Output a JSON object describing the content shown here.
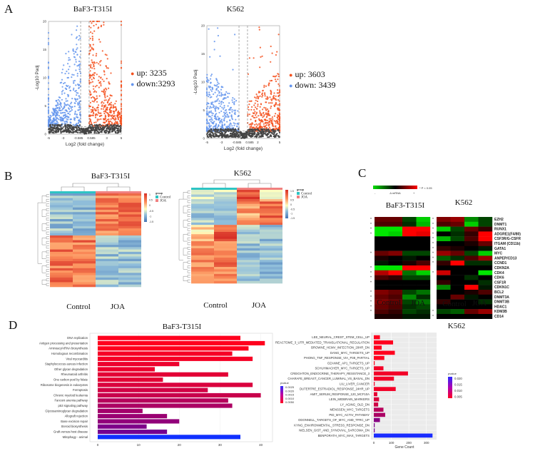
{
  "panels": {
    "A": {
      "letter": "A"
    },
    "B": {
      "letter": "B"
    },
    "C": {
      "letter": "C"
    },
    "D": {
      "letter": "D"
    }
  },
  "chart_data": [
    {
      "id": "A1",
      "type": "scatter",
      "subtype": "volcano",
      "title": "BaF3-T315I",
      "xlabel": "Log2 (fold change)",
      "ylabel": "-Log10 Padj",
      "xticks": [
        "-5",
        "-3",
        "-0.585",
        "0.585",
        "3",
        "5"
      ],
      "yticks": [
        "0",
        "5",
        "10",
        "15",
        "20"
      ],
      "xlim": [
        -5,
        5
      ],
      "ylim": [
        0,
        20
      ],
      "thresholds": {
        "log2fc": 0.585,
        "neg_log10_padj": 1.3
      },
      "legend": [
        {
          "label": "up:",
          "value": "3235",
          "color": "#f4511e"
        },
        {
          "label": "down:",
          "value": "3293",
          "color": "#6495ed"
        }
      ],
      "colors": {
        "up": "#f4511e",
        "down": "#6495ed",
        "ns": "#444444"
      }
    },
    {
      "id": "A2",
      "type": "scatter",
      "subtype": "volcano",
      "title": "K562",
      "xlabel": "Log2 (fold change)",
      "ylabel": "-Log10 Padj",
      "xticks": [
        "-5",
        "-3",
        "-0.585",
        "0.585",
        "2",
        "5"
      ],
      "yticks": [
        "0",
        "5",
        "10",
        "15",
        "20"
      ],
      "xlim": [
        -5,
        5
      ],
      "ylim": [
        0,
        20
      ],
      "thresholds": {
        "log2fc": 0.585,
        "neg_log10_padj": 1.3
      },
      "legend": [
        {
          "label": "up:",
          "value": "3603",
          "color": "#f4511e"
        },
        {
          "label": "down:",
          "value": "3439",
          "color": "#6495ed"
        }
      ],
      "colors": {
        "up": "#f4511e",
        "down": "#6495ed",
        "ns": "#444444"
      }
    },
    {
      "id": "B1",
      "type": "heatmap",
      "title": "BaF3-T315I",
      "xlabels": [
        "Control",
        "JOA"
      ],
      "legend_title": "group",
      "groups": [
        {
          "name": "Control",
          "color": "#2ec4c4"
        },
        {
          "name": "JOA",
          "color": "#f08080"
        }
      ],
      "scale_ticks": [
        "1",
        "0.5",
        "0",
        "-0.5",
        "-1",
        "-1.5"
      ],
      "rows": 40,
      "columns": 4
    },
    {
      "id": "B2",
      "type": "heatmap",
      "title": "K562",
      "xlabels": [
        "Control",
        "JOA"
      ],
      "legend_title": "group",
      "groups": [
        {
          "name": "Control",
          "color": "#2ec4c4"
        },
        {
          "name": "JOA",
          "color": "#f08080"
        }
      ],
      "scale_ticks": [
        "1.5",
        "1",
        "0.5",
        "0",
        "-0.5",
        "-1",
        "-1.5"
      ],
      "rows": 40,
      "columns": 4
    },
    {
      "id": "C",
      "type": "heatmap",
      "legend_label": "Δ mRNA",
      "legend_minus": "-",
      "legend_plus": "+",
      "pvalue_note": "* P < 0.05",
      "panels": [
        {
          "title": "BaF3-T315I",
          "xlabels": [
            "Control",
            "JOA"
          ],
          "values": [
            [
              0.4,
              0.4,
              -0.3,
              -0.9
            ],
            [
              0.3,
              0.3,
              -0.2,
              -0.8
            ],
            [
              -1,
              -1,
              1,
              1
            ],
            [
              -1,
              -0.9,
              1,
              0.9
            ],
            [
              0,
              0,
              0,
              0
            ],
            [
              0,
              0,
              0,
              0
            ],
            [
              0,
              0,
              0,
              0
            ],
            [
              0.4,
              0.5,
              -0.3,
              -0.3
            ],
            [
              0.1,
              0,
              -0.1,
              0
            ],
            [
              -0.1,
              0,
              0.1,
              0.3
            ],
            [
              -1,
              -1,
              1,
              1
            ],
            [
              0.7,
              1,
              -0.5,
              -0.9
            ],
            [
              0.3,
              0.2,
              -0.3,
              -0.3
            ],
            [
              0,
              0,
              0,
              0
            ],
            [
              0,
              0,
              0,
              0
            ],
            [
              0.5,
              0.4,
              -0.3,
              -0.5
            ],
            [
              0.4,
              0.3,
              -0.6,
              -0.2
            ],
            [
              0.5,
              0.4,
              -0.3,
              -0.5
            ],
            [
              0.4,
              0.3,
              -0.2,
              -0.3
            ],
            [
              0.3,
              0.2,
              -0.3,
              -0.2
            ],
            [
              0.1,
              0.1,
              -0.1,
              -0.1
            ]
          ],
          "significant": [
            true,
            true,
            true,
            true,
            false,
            false,
            false,
            true,
            false,
            false,
            true,
            true,
            true,
            true,
            false,
            true,
            true,
            true,
            true,
            true,
            false
          ]
        },
        {
          "title": "K562",
          "xlabels": [
            "Control",
            "JOA"
          ],
          "values": [
            [
              0.5,
              0.6,
              -0.6,
              -0.3
            ],
            [
              0.3,
              0.4,
              -0.9,
              -0.3
            ],
            [
              -0.9,
              -0.3,
              0.4,
              0.2
            ],
            [
              0,
              -0.2,
              0.2,
              1
            ],
            [
              -0.8,
              -0.3,
              0.3,
              1
            ],
            [
              0,
              0,
              0.1,
              0.4
            ],
            [
              0.2,
              0.1,
              0,
              -0.1
            ],
            [
              0.6,
              0.4,
              -0.3,
              -0.9
            ],
            [
              -0.4,
              -0.2,
              0.3,
              0.6
            ],
            [
              0.2,
              1,
              -0.2,
              -0.2
            ],
            [
              0,
              0,
              0,
              0
            ],
            [
              0.8,
              0,
              0,
              -1
            ],
            [
              0,
              0,
              -0.2,
              0
            ],
            [
              0.2,
              0,
              0,
              -0.2
            ],
            [
              -0.6,
              0,
              1,
              -0.1
            ],
            [
              0,
              0,
              0.1,
              0.3
            ],
            [
              0,
              0.4,
              -0.1,
              0
            ],
            [
              0.2,
              0,
              0,
              -0.2
            ],
            [
              0,
              0,
              0,
              0
            ],
            [
              -0.3,
              -0.4,
              0.4,
              0.6
            ],
            [
              0,
              0,
              0,
              0
            ]
          ],
          "significant": [
            true,
            true,
            true,
            true,
            true,
            true,
            true,
            true,
            true,
            true,
            false,
            true,
            false,
            false,
            false,
            false,
            false,
            false,
            false,
            true,
            true
          ]
        }
      ],
      "genes": [
        "EZH2",
        "DNMT1",
        "RUNX1",
        "ADGRE1(F4/80)",
        "CSF3R/G-CSFR",
        "ITGAM (CD11b)",
        "GATA1",
        "MYC",
        "ANPEP/CD13",
        "CCND1",
        "CDKN2A",
        "CDK4",
        "CDK6",
        "CSF1R",
        "CDKN1C",
        "BCL2",
        "DNMT3A",
        "DNMT3B",
        "HDAC1",
        "KDM3B",
        "CD14"
      ]
    },
    {
      "id": "D1",
      "type": "bar",
      "orientation": "horizontal",
      "title": "BaF3-T315I",
      "categories": [
        "DNA replication",
        "Antigen processing and presentation",
        "Aminoacyl-tRNA biosynthesis",
        "Homologous recombination",
        "Viral myocarditis",
        "Staphylococcus aureus infection",
        "Other glycan degradation",
        "Rheumatoid arthritis",
        "One carbon pool by folate",
        "Ribosome biogenesis in eukaryotes",
        "Ferroptosis",
        "Chronic myeloid leukemia",
        "Fanconi anemia pathway",
        "p53 signaling pathway",
        "Glycosaminoglycan degradation",
        "Allograft rejection",
        "Base excision repair",
        "Steroid biosynthesis",
        "Graft-versus-host disease",
        "Mitophagy - animal"
      ],
      "values": [
        35,
        41,
        37,
        33,
        38,
        20,
        14,
        32,
        16,
        38,
        27,
        40,
        32,
        33,
        11,
        17,
        20,
        12,
        17,
        35
      ],
      "pvalues": [
        0.0001,
        0.0001,
        0.0001,
        0.0002,
        0.0002,
        0.0003,
        0.0003,
        0.0004,
        0.0004,
        0.0005,
        0.0006,
        0.0007,
        0.0009,
        0.001,
        0.0011,
        0.0012,
        0.0013,
        0.0015,
        0.0016,
        0.0026
      ],
      "xticks": [
        "0",
        "10",
        "20",
        "30",
        "40"
      ],
      "xlim": [
        0,
        42
      ],
      "legend_title": "pvalue",
      "legend_ticks": [
        "0.0025",
        "0.0020",
        "0.0015",
        "0.0010",
        "0.0050"
      ]
    },
    {
      "id": "D2",
      "type": "bar",
      "orientation": "horizontal",
      "title": "K562",
      "xlabel": "Gene Count",
      "categories": [
        "LEE_NEURAL_CREST_STEM_CELL_UP",
        "REACTOME_3_UTR_MEDIATED_TRANSLATIONAL_REGULATION",
        "BROWNE_HCMV_INFECTION_20HR_DN",
        "DANG_MYC_TARGETS_UP",
        "PHONG_TNF_RESPONSE_VIA_P38_PARTIAL",
        "OZANNE_AP1_TARGETS_UP",
        "SCHUHMACHER_MYC_TARGETS_UP",
        "CREIGHTON_ENDOCRINE_THERAPY_RESISTANCE_3",
        "CHARAFE_BREAST_CANCER_LUMINAL_VS_BASAL_DN",
        "LIU_LIVER_CANCER",
        "DUTERTRE_ESTRADIOL_RESPONSE_24HR_UP",
        "AMIT_SERUM_RESPONSE_120_MCF10A",
        "LEIN_MIDBRAIN_MARKERS",
        "LY_AGING_OLD_DN",
        "MENSSEN_MYC_TARGETS",
        "PID_MYC_ACTIV_PATHWAY",
        "ODONNELL_TARGETS_OF_MYC_AND_TFRC_UP",
        "KYNG_ENVIRONMENTAL_STRESS_RESPONSE_DN",
        "NIELSEN_GIST_AND_SYNOVIAL_SARCOMA_DN",
        "BENPORATH_MYC_MAX_TARGETS"
      ],
      "values": [
        35,
        110,
        45,
        120,
        60,
        5,
        55,
        195,
        115,
        5,
        125,
        20,
        30,
        25,
        55,
        65,
        35,
        5,
        5,
        335
      ],
      "pvalues": [
        0.003,
        0.003,
        0.003,
        0.003,
        0.003,
        0.003,
        0.004,
        0.004,
        0.004,
        0.004,
        0.004,
        0.005,
        0.006,
        0.007,
        0.009,
        0.01,
        0.013,
        0.014,
        0.015,
        0.02
      ],
      "xticks": [
        "0",
        "100",
        "200",
        "300"
      ],
      "xlim": [
        0,
        350
      ],
      "legend_title": "pvalue",
      "legend_ticks": [
        "0.020",
        "0.015",
        "0.010",
        "0.005"
      ]
    }
  ]
}
